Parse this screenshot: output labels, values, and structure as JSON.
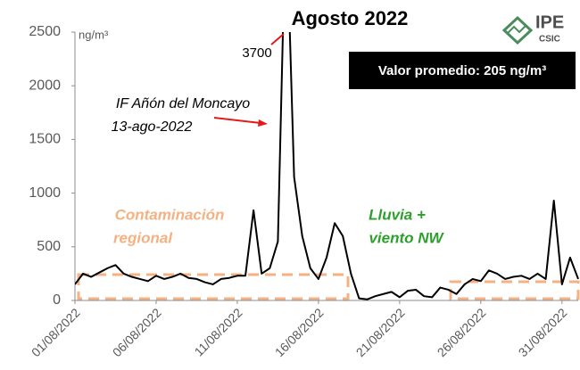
{
  "chart_data": {
    "type": "line",
    "title": "Agosto 2022",
    "y_unit": "ng/m³",
    "peak_label": "3700",
    "annotation_fire": [
      "IF Añón del Moncayo",
      "13-ago-2022"
    ],
    "annotation_regional": [
      "Contaminación",
      "regional"
    ],
    "annotation_rain": [
      "Lluvia +",
      "viento NW"
    ],
    "mean_box": "Valor promedio: 205 ng/m³",
    "logo": [
      "IPE",
      "CSIC"
    ],
    "x": [
      "2022-08-01T00:00",
      "2022-08-01T12:00",
      "2022-08-02T00:00",
      "2022-08-02T12:00",
      "2022-08-03T00:00",
      "2022-08-03T12:00",
      "2022-08-04T00:00",
      "2022-08-04T12:00",
      "2022-08-05T00:00",
      "2022-08-05T12:00",
      "2022-08-06T00:00",
      "2022-08-06T12:00",
      "2022-08-07T00:00",
      "2022-08-07T12:00",
      "2022-08-08T00:00",
      "2022-08-08T12:00",
      "2022-08-09T00:00",
      "2022-08-09T12:00",
      "2022-08-10T00:00",
      "2022-08-10T12:00",
      "2022-08-11T00:00",
      "2022-08-11T12:00",
      "2022-08-12T00:00",
      "2022-08-12T12:00",
      "2022-08-13T00:00",
      "2022-08-13T12:00",
      "2022-08-14T00:00",
      "2022-08-14T12:00",
      "2022-08-15T00:00",
      "2022-08-15T12:00",
      "2022-08-16T00:00",
      "2022-08-16T12:00",
      "2022-08-17T00:00",
      "2022-08-17T12:00",
      "2022-08-18T00:00",
      "2022-08-18T12:00",
      "2022-08-19T00:00",
      "2022-08-19T12:00",
      "2022-08-20T00:00",
      "2022-08-20T12:00",
      "2022-08-21T00:00",
      "2022-08-21T12:00",
      "2022-08-22T00:00",
      "2022-08-22T12:00",
      "2022-08-23T00:00",
      "2022-08-23T12:00",
      "2022-08-24T00:00",
      "2022-08-24T12:00",
      "2022-08-25T00:00",
      "2022-08-25T12:00",
      "2022-08-26T00:00",
      "2022-08-26T12:00",
      "2022-08-27T00:00",
      "2022-08-27T12:00",
      "2022-08-28T00:00",
      "2022-08-28T12:00",
      "2022-08-29T00:00",
      "2022-08-29T12:00",
      "2022-08-30T00:00",
      "2022-08-30T12:00",
      "2022-08-31T00:00",
      "2022-08-31T12:00",
      "2022-09-01T00:00"
    ],
    "series": [
      {
        "name": "ng/m³",
        "color": "#000000",
        "values": [
          150,
          250,
          220,
          260,
          300,
          330,
          250,
          220,
          200,
          180,
          230,
          200,
          220,
          250,
          210,
          200,
          170,
          150,
          200,
          210,
          230,
          230,
          840,
          250,
          300,
          550,
          3700,
          1150,
          600,
          300,
          200,
          400,
          720,
          600,
          250,
          20,
          10,
          40,
          60,
          80,
          30,
          90,
          100,
          40,
          30,
          120,
          100,
          60,
          150,
          200,
          180,
          280,
          250,
          200,
          220,
          230,
          200,
          250,
          200,
          930,
          150,
          400,
          200
        ]
      }
    ],
    "xlim": [
      "2022-08-01",
      "2022-09-01"
    ],
    "xticks": [
      {
        "value": "2022-08-01",
        "label": "01/08/2022"
      },
      {
        "value": "2022-08-06",
        "label": "06/08/2022"
      },
      {
        "value": "2022-08-11",
        "label": "11/08/2022"
      },
      {
        "value": "2022-08-16",
        "label": "16/08/2022"
      },
      {
        "value": "2022-08-21",
        "label": "21/08/2022"
      },
      {
        "value": "2022-08-26",
        "label": "26/08/2022"
      },
      {
        "value": "2022-08-31",
        "label": "31/08/2022"
      }
    ],
    "ylim": [
      0,
      2500
    ],
    "yticks": [
      0,
      500,
      1000,
      1500,
      2000,
      2500
    ],
    "grid": false
  }
}
